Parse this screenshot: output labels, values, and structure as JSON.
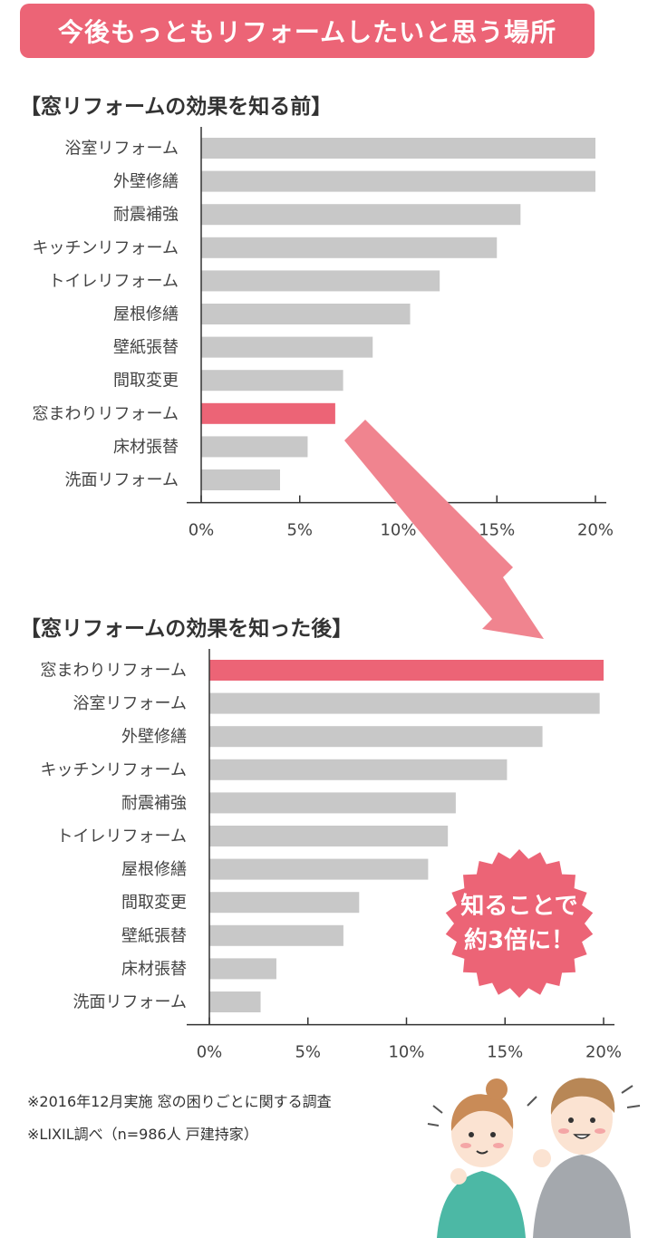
{
  "page_title": "今後もっともリフォームしたいと思う場所",
  "callout": {
    "line1": "知ることで",
    "line2": "約3倍に！"
  },
  "footnotes": [
    "※2016年12月実施 窓の困りごとに関する調査",
    "※LIXIL調べ（n=986人 戸建持家）"
  ],
  "colors": {
    "accent": "#ec6476",
    "bar": "#c8c8c8",
    "arrow": "#f0848f"
  },
  "illustration": "two-people-thinking-illustration",
  "chart_data": [
    {
      "type": "bar",
      "orientation": "horizontal",
      "title": "【窓リフォームの効果を知る前】",
      "categories": [
        "浴室リフォーム",
        "外壁修繕",
        "耐震補強",
        "キッチンリフォーム",
        "トイレリフォーム",
        "屋根修繕",
        "壁紙張替",
        "間取変更",
        "窓まわりリフォーム",
        "床材張替",
        "洗面リフォーム"
      ],
      "values": [
        20.0,
        20.0,
        16.2,
        15.0,
        12.1,
        10.6,
        8.7,
        7.2,
        6.8,
        5.4,
        4.0
      ],
      "highlight": "窓まわりリフォーム",
      "xlim": [
        0,
        20
      ],
      "xticks": [
        "0%",
        "5%",
        "10%",
        "15%",
        "20%"
      ],
      "grid": false
    },
    {
      "type": "bar",
      "orientation": "horizontal",
      "title": "【窓リフォームの効果を知った後】",
      "categories": [
        "窓まわりリフォーム",
        "浴室リフォーム",
        "外壁修繕",
        "キッチンリフォーム",
        "耐震補強",
        "トイレリフォーム",
        "屋根修繕",
        "間取変更",
        "壁紙張替",
        "床材張替",
        "洗面リフォーム"
      ],
      "values": [
        20.0,
        19.8,
        16.9,
        15.1,
        12.5,
        12.1,
        11.1,
        7.6,
        6.8,
        3.4,
        2.6
      ],
      "highlight": "窓まわりリフォーム",
      "xlim": [
        0,
        20
      ],
      "xticks": [
        "0%",
        "5%",
        "10%",
        "15%",
        "20%"
      ],
      "grid": false
    }
  ]
}
